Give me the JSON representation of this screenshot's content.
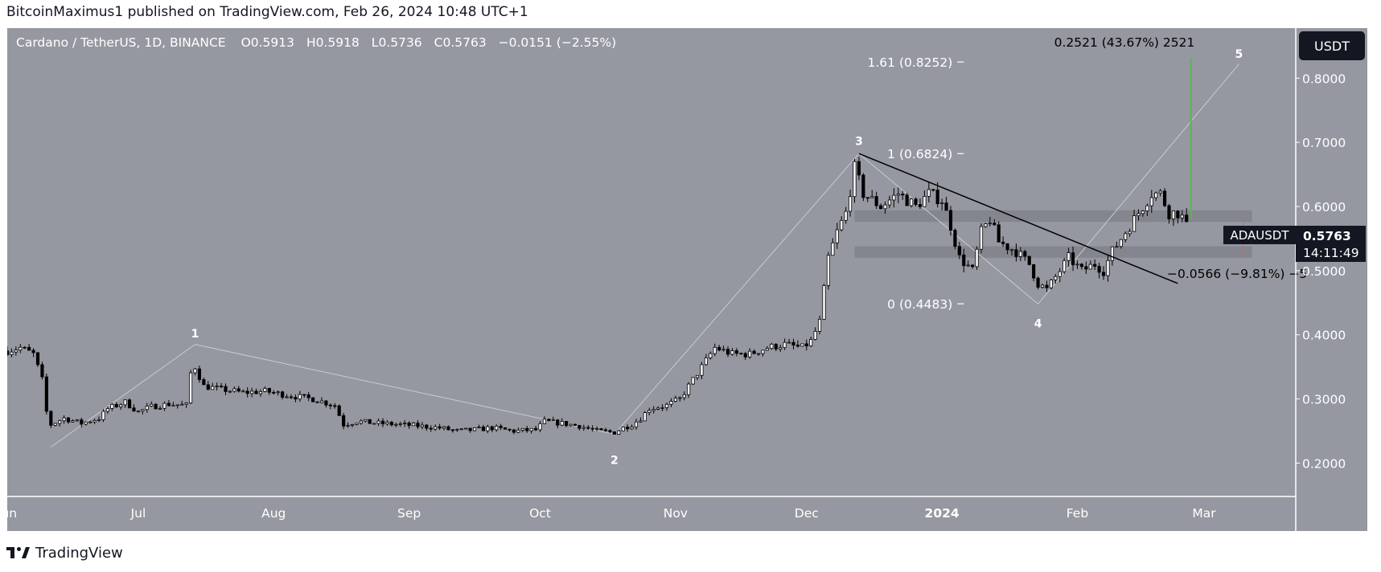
{
  "header": {
    "text": "BitcoinMaximus1 published on TradingView.com, Feb 26, 2024 10:48 UTC+1"
  },
  "legend": {
    "symbol": "Cardano / TetherUS, 1D, BINANCE",
    "o_label": "O",
    "o_value": "0.5913",
    "h_label": "H",
    "h_value": "0.5918",
    "l_label": "L",
    "l_value": "0.5736",
    "c_label": "C",
    "c_value": "0.5763",
    "change": "−0.0151 (−2.55%)"
  },
  "currency_button": "USDT",
  "price_tag": {
    "symbol": "ADAUSDT",
    "price": "0.5763",
    "countdown": "14:11:49"
  },
  "measure_up": "0.2521 (43.67%) 2521",
  "measure_down": "−0.0566 (−9.81%) −5",
  "fib_labels": [
    "1.61 (0.8252)",
    "1 (0.6824)",
    "0 (0.4483)"
  ],
  "wave_labels": [
    "1",
    "2",
    "3",
    "4",
    "5"
  ],
  "footer": {
    "brand": "TradingView"
  },
  "colors": {
    "background": "#9598a1",
    "axis_text": "#ffffff",
    "up_candle": "#ffffff",
    "down_candle": "#000000",
    "zone": "#7b7e86",
    "green_measure": "#5ab552",
    "red_measure": "#e06060"
  },
  "chart_data": {
    "type": "candlestick",
    "title": "Cardano / TetherUS, 1D, BINANCE",
    "x_ticks": [
      "Jun",
      "Jul",
      "Aug",
      "Sep",
      "Oct",
      "Nov",
      "Dec",
      "2024",
      "Feb",
      "Mar"
    ],
    "x_tick_dates": [
      "2023-06-01",
      "2023-07-01",
      "2023-08-01",
      "2023-09-01",
      "2023-10-01",
      "2023-11-01",
      "2023-12-01",
      "2024-01-01",
      "2024-02-01",
      "2024-03-01"
    ],
    "y_ticks": [
      "0.8000",
      "0.7000",
      "0.6000",
      "0.5000",
      "0.4000",
      "0.3000",
      "0.2000"
    ],
    "y_tick_values": [
      0.8,
      0.7,
      0.6,
      0.5,
      0.4,
      0.3,
      0.2
    ],
    "ylim": [
      0.148,
      0.878
    ],
    "x_range": [
      "2023-06-01",
      "2024-03-22"
    ],
    "last_price": 0.5763,
    "price_path": [
      [
        "2023-06-01",
        0.375
      ],
      [
        "2023-06-04",
        0.38
      ],
      [
        "2023-06-07",
        0.37
      ],
      [
        "2023-06-09",
        0.33
      ],
      [
        "2023-06-10",
        0.28
      ],
      [
        "2023-06-11",
        0.26
      ],
      [
        "2023-06-14",
        0.27
      ],
      [
        "2023-06-18",
        0.262
      ],
      [
        "2023-06-22",
        0.27
      ],
      [
        "2023-06-24",
        0.285
      ],
      [
        "2023-06-28",
        0.295
      ],
      [
        "2023-07-01",
        0.28
      ],
      [
        "2023-07-04",
        0.288
      ],
      [
        "2023-07-08",
        0.292
      ],
      [
        "2023-07-12",
        0.29
      ],
      [
        "2023-07-13",
        0.34
      ],
      [
        "2023-07-14",
        0.35
      ],
      [
        "2023-07-16",
        0.32
      ],
      [
        "2023-07-20",
        0.315
      ],
      [
        "2023-07-25",
        0.31
      ],
      [
        "2023-07-30",
        0.312
      ],
      [
        "2023-08-05",
        0.305
      ],
      [
        "2023-08-10",
        0.3
      ],
      [
        "2023-08-15",
        0.29
      ],
      [
        "2023-08-17",
        0.26
      ],
      [
        "2023-08-20",
        0.265
      ],
      [
        "2023-08-25",
        0.262
      ],
      [
        "2023-08-30",
        0.26
      ],
      [
        "2023-09-03",
        0.258
      ],
      [
        "2023-09-08",
        0.255
      ],
      [
        "2023-09-12",
        0.25
      ],
      [
        "2023-09-16",
        0.252
      ],
      [
        "2023-09-20",
        0.255
      ],
      [
        "2023-09-25",
        0.25
      ],
      [
        "2023-09-30",
        0.252
      ],
      [
        "2023-10-02",
        0.265
      ],
      [
        "2023-10-06",
        0.262
      ],
      [
        "2023-10-10",
        0.258
      ],
      [
        "2023-10-14",
        0.25
      ],
      [
        "2023-10-18",
        0.248
      ],
      [
        "2023-10-20",
        0.255
      ],
      [
        "2023-10-22",
        0.26
      ],
      [
        "2023-10-24",
        0.27
      ],
      [
        "2023-10-26",
        0.285
      ],
      [
        "2023-10-30",
        0.29
      ],
      [
        "2023-11-02",
        0.3
      ],
      [
        "2023-11-04",
        0.32
      ],
      [
        "2023-11-06",
        0.34
      ],
      [
        "2023-11-08",
        0.36
      ],
      [
        "2023-11-10",
        0.38
      ],
      [
        "2023-11-14",
        0.37
      ],
      [
        "2023-11-18",
        0.37
      ],
      [
        "2023-11-22",
        0.38
      ],
      [
        "2023-11-26",
        0.385
      ],
      [
        "2023-11-30",
        0.38
      ],
      [
        "2023-12-02",
        0.39
      ],
      [
        "2023-12-04",
        0.42
      ],
      [
        "2023-12-06",
        0.52
      ],
      [
        "2023-12-08",
        0.56
      ],
      [
        "2023-12-10",
        0.59
      ],
      [
        "2023-12-12",
        0.66
      ],
      [
        "2023-12-14",
        0.62
      ],
      [
        "2023-12-18",
        0.6
      ],
      [
        "2023-12-22",
        0.62
      ],
      [
        "2023-12-26",
        0.6
      ],
      [
        "2023-12-29",
        0.62
      ],
      [
        "2024-01-01",
        0.61
      ],
      [
        "2024-01-03",
        0.57
      ],
      [
        "2024-01-05",
        0.52
      ],
      [
        "2024-01-08",
        0.5
      ],
      [
        "2024-01-10",
        0.56
      ],
      [
        "2024-01-12",
        0.58
      ],
      [
        "2024-01-14",
        0.545
      ],
      [
        "2024-01-18",
        0.53
      ],
      [
        "2024-01-21",
        0.51
      ],
      [
        "2024-01-23",
        0.48
      ],
      [
        "2024-01-25",
        0.47
      ],
      [
        "2024-01-27",
        0.49
      ],
      [
        "2024-01-30",
        0.52
      ],
      [
        "2024-02-02",
        0.5
      ],
      [
        "2024-02-05",
        0.51
      ],
      [
        "2024-02-07",
        0.5
      ],
      [
        "2024-02-09",
        0.53
      ],
      [
        "2024-02-11",
        0.55
      ],
      [
        "2024-02-14",
        0.58
      ],
      [
        "2024-02-16",
        0.6
      ],
      [
        "2024-02-18",
        0.62
      ],
      [
        "2024-02-20",
        0.62
      ],
      [
        "2024-02-22",
        0.59
      ],
      [
        "2024-02-24",
        0.59
      ],
      [
        "2024-02-26",
        0.5763
      ]
    ],
    "annotations": {
      "support_zones": [
        [
          0.576,
          0.594
        ],
        [
          0.52,
          0.538
        ]
      ],
      "descending_resistance": [
        [
          "2023-12-13",
          0.6824
        ],
        [
          "2024-02-24",
          0.48
        ]
      ],
      "fib_levels": [
        1.61,
        1,
        0
      ],
      "fib_values": [
        0.8252,
        0.6824,
        0.4483
      ],
      "fib_line_date": "2024-01-06",
      "wave_points": [
        {
          "label": "1",
          "date": "2023-07-14",
          "price": 0.385,
          "label_price": 0.402
        },
        {
          "label": "2",
          "date": "2023-10-18",
          "price": 0.245,
          "label_price": 0.205
        },
        {
          "label": "3",
          "date": "2023-12-13",
          "price": 0.6824,
          "label_price": 0.702
        },
        {
          "label": "4",
          "date": "2024-01-23",
          "price": 0.448,
          "label_price": 0.418
        },
        {
          "label": "5",
          "date": "2024-03-09",
          "price": 0.822,
          "label_price": 0.838
        }
      ],
      "wave_path": [
        [
          "2023-06-11",
          0.225
        ],
        [
          "2023-07-14",
          0.385
        ],
        [
          "2023-10-18",
          0.245
        ],
        [
          "2023-12-13",
          0.6824
        ],
        [
          "2024-01-23",
          0.448
        ],
        [
          "2024-03-09",
          0.822
        ]
      ],
      "measure_up": {
        "date": "2024-02-27",
        "from": 0.58,
        "to": 0.832,
        "label_price": 0.86
      },
      "measure_down": {
        "date": "2024-03-10",
        "from": 0.576,
        "to": 0.52,
        "label_price": 0.48
      }
    }
  }
}
